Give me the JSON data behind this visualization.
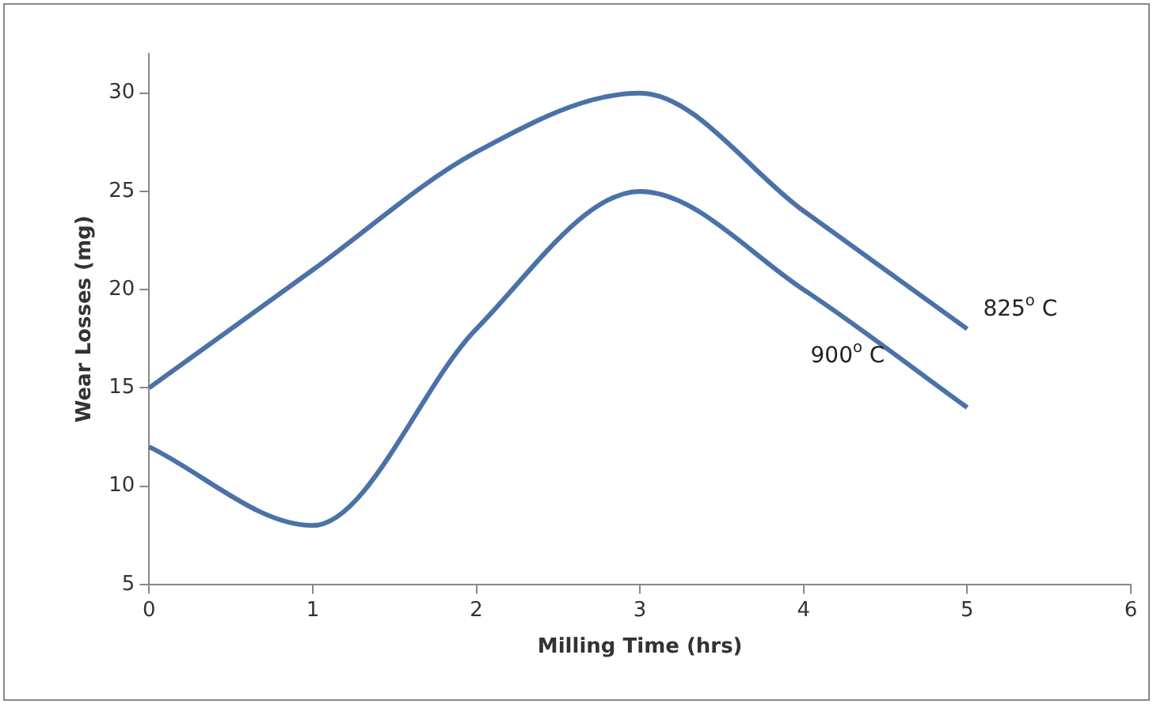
{
  "chart_data": {
    "type": "line",
    "xlabel": "Milling Time (hrs)",
    "ylabel": "Wear Losses (mg)",
    "x": [
      0,
      1,
      2,
      3,
      4,
      5
    ],
    "series": [
      {
        "name": "825$^{o}$ C",
        "color": "#4a72a8",
        "values": [
          15,
          21,
          27,
          30,
          24,
          18
        ]
      },
      {
        "name": "900$^{o}$ C",
        "color": "#4a72a8",
        "values": [
          12,
          8,
          18,
          25,
          20,
          14
        ]
      }
    ],
    "xlim": [
      0,
      6
    ],
    "xticks": [
      0,
      1,
      2,
      3,
      4,
      5,
      6
    ],
    "ylim": [
      5,
      32
    ],
    "yticks": [
      5,
      10,
      15,
      20,
      25,
      30
    ],
    "grid": false,
    "legend": false,
    "marker": "none",
    "line_style": "solid"
  }
}
